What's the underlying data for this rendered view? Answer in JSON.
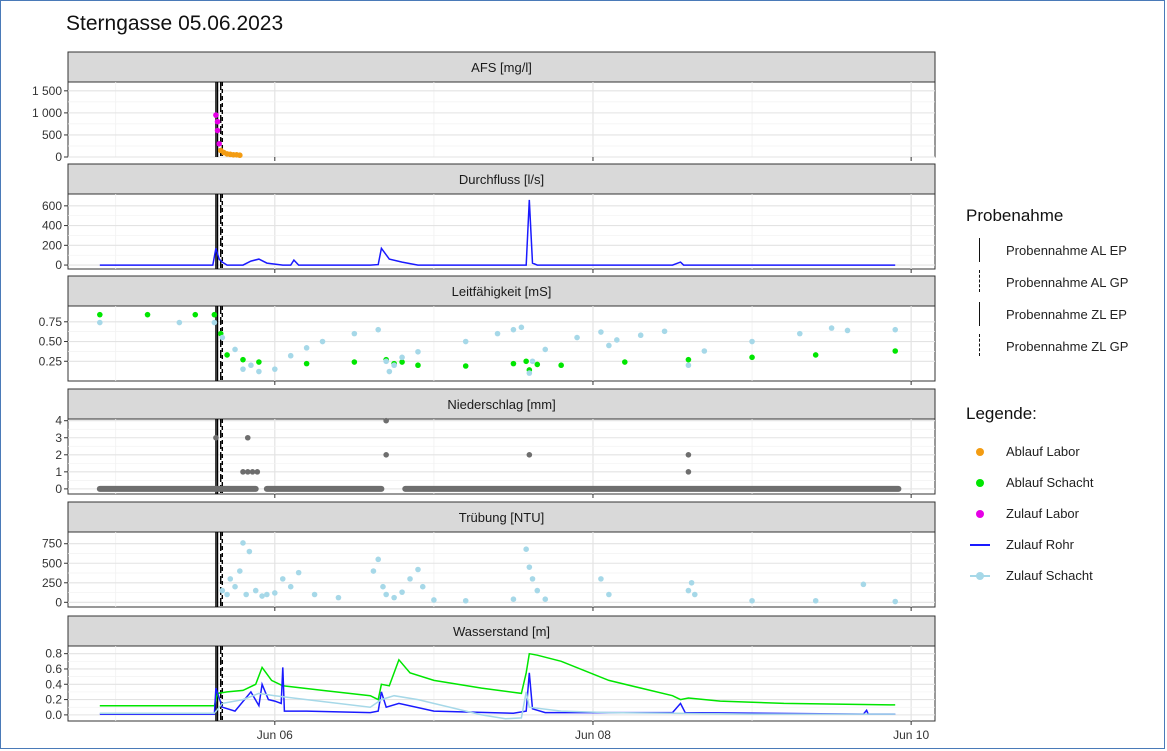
{
  "title": "Sterngasse 05.06.2023",
  "chart_data": {
    "type": "line",
    "x_ticks": [
      {
        "day": 0,
        "label": "Jun 06"
      },
      {
        "day": 2,
        "label": "Jun 08"
      },
      {
        "day": 4,
        "label": "Jun 10"
      }
    ],
    "x_range_days": [
      -1.3,
      4.15
    ],
    "sampling_events": {
      "AL EP": -0.36,
      "AL GP": -0.34,
      "ZL EP": -0.37,
      "ZL GP": -0.33
    },
    "panels": [
      {
        "title": "AFS [mg/l]",
        "ylim": [
          0,
          1700
        ],
        "yticks": [
          0,
          500,
          1000,
          1500
        ],
        "ytick_labels": [
          "0",
          "500",
          "1 000",
          "1 500"
        ],
        "series": [
          {
            "name": "Zulauf Labor",
            "style": "points",
            "x": [
              -0.37,
              -0.36,
              -0.36,
              -0.35
            ],
            "y": [
              950,
              800,
              600,
              300
            ]
          },
          {
            "name": "Ablauf Labor",
            "style": "points",
            "x": [
              -0.34,
              -0.32,
              -0.3,
              -0.28,
              -0.26,
              -0.24,
              -0.22
            ],
            "y": [
              150,
              100,
              70,
              60,
              50,
              50,
              40
            ]
          }
        ]
      },
      {
        "title": "Durchfluss [l/s]",
        "ylim": [
          -40,
          720
        ],
        "yticks": [
          0,
          200,
          400,
          600
        ],
        "ytick_labels": [
          "0",
          "200",
          "400",
          "600"
        ],
        "series": [
          {
            "name": "Zulauf Rohr",
            "style": "line",
            "x": [
              -1.1,
              -0.39,
              -0.37,
              -0.35,
              -0.33,
              -0.3,
              -0.2,
              -0.15,
              -0.1,
              -0.05,
              0.05,
              0.1,
              0.12,
              0.15,
              0.6,
              0.65,
              0.67,
              0.72,
              0.8,
              0.9,
              1.5,
              1.58,
              1.6,
              1.62,
              1.65,
              2.5,
              2.55,
              2.57,
              3.9
            ],
            "y": [
              0,
              0,
              170,
              60,
              30,
              0,
              0,
              40,
              60,
              20,
              0,
              0,
              50,
              0,
              0,
              5,
              170,
              60,
              30,
              0,
              0,
              0,
              660,
              20,
              0,
              0,
              30,
              0,
              0
            ]
          }
        ]
      },
      {
        "title": "Leitfähigkeit [mS]",
        "ylim": [
          0,
          0.95
        ],
        "yticks": [
          0.25,
          0.5,
          0.75
        ],
        "ytick_labels": [
          "0.25",
          "0.50",
          "0.75"
        ],
        "series": [
          {
            "name": "Ablauf Schacht",
            "style": "points",
            "x": [
              -1.1,
              -0.8,
              -0.5,
              -0.38,
              -0.34,
              -0.3,
              -0.2,
              -0.1,
              0.2,
              0.5,
              0.7,
              0.75,
              0.8,
              0.9,
              1.2,
              1.5,
              1.58,
              1.6,
              1.65,
              1.8,
              2.2,
              2.6,
              3.0,
              3.4,
              3.9
            ],
            "y": [
              0.84,
              0.84,
              0.84,
              0.84,
              0.6,
              0.33,
              0.27,
              0.24,
              0.22,
              0.24,
              0.27,
              0.22,
              0.24,
              0.2,
              0.19,
              0.22,
              0.25,
              0.14,
              0.21,
              0.2,
              0.24,
              0.27,
              0.3,
              0.33,
              0.38
            ]
          },
          {
            "name": "Zulauf Schacht",
            "style": "points",
            "x": [
              -1.1,
              -0.6,
              -0.38,
              -0.33,
              -0.25,
              -0.2,
              -0.15,
              -0.1,
              0.0,
              0.1,
              0.2,
              0.3,
              0.5,
              0.65,
              0.7,
              0.72,
              0.75,
              0.8,
              0.9,
              1.2,
              1.4,
              1.5,
              1.55,
              1.6,
              1.62,
              1.7,
              1.9,
              2.05,
              2.1,
              2.15,
              2.3,
              2.45,
              2.6,
              2.7,
              3.0,
              3.3,
              3.5,
              3.6,
              3.9
            ],
            "y": [
              0.74,
              0.74,
              0.74,
              0.55,
              0.4,
              0.15,
              0.2,
              0.12,
              0.15,
              0.32,
              0.42,
              0.5,
              0.6,
              0.65,
              0.25,
              0.12,
              0.2,
              0.3,
              0.37,
              0.5,
              0.6,
              0.65,
              0.68,
              0.1,
              0.25,
              0.4,
              0.55,
              0.62,
              0.45,
              0.52,
              0.58,
              0.63,
              0.2,
              0.38,
              0.5,
              0.6,
              0.67,
              0.64,
              0.65
            ]
          }
        ]
      },
      {
        "title": "Niederschlag [mm]",
        "ylim": [
          -0.3,
          4.1
        ],
        "yticks": [
          0,
          1,
          2,
          3,
          4
        ],
        "ytick_labels": [
          "0",
          "1",
          "2",
          "3",
          "4"
        ],
        "series": [
          {
            "name": "Niederschlag",
            "style": "points",
            "x": [
              -0.37,
              -0.2,
              -0.17,
              -0.14,
              -0.11,
              -0.17,
              0.7,
              0.7,
              1.6,
              2.6,
              2.6
            ],
            "y": [
              3,
              1,
              1,
              1,
              1,
              3,
              4,
              2,
              2,
              2,
              1
            ]
          }
        ]
      },
      {
        "title": "Trübung [NTU]",
        "ylim": [
          -60,
          900
        ],
        "yticks": [
          0,
          250,
          500,
          750
        ],
        "ytick_labels": [
          "0",
          "250",
          "500",
          "750"
        ],
        "series": [
          {
            "name": "Zulauf Schacht",
            "style": "points",
            "x": [
              -0.33,
              -0.3,
              -0.28,
              -0.25,
              -0.22,
              -0.2,
              -0.18,
              -0.16,
              -0.12,
              -0.08,
              -0.05,
              0.0,
              0.05,
              0.1,
              0.15,
              0.25,
              0.4,
              0.62,
              0.65,
              0.68,
              0.7,
              0.75,
              0.8,
              0.85,
              0.9,
              0.93,
              1.0,
              1.2,
              1.5,
              1.58,
              1.6,
              1.62,
              1.65,
              1.7,
              2.05,
              2.1,
              2.6,
              2.62,
              2.64,
              3.0,
              3.4,
              3.7,
              3.9
            ],
            "y": [
              150,
              100,
              300,
              200,
              400,
              760,
              100,
              650,
              150,
              80,
              100,
              120,
              300,
              200,
              380,
              100,
              60,
              400,
              550,
              200,
              100,
              60,
              130,
              300,
              420,
              200,
              30,
              20,
              40,
              680,
              450,
              300,
              150,
              40,
              300,
              100,
              150,
              250,
              100,
              20,
              20,
              230,
              10
            ]
          }
        ]
      },
      {
        "title": "Wasserstand [m]",
        "ylim": [
          -0.08,
          0.9
        ],
        "yticks": [
          0.0,
          0.2,
          0.4,
          0.6,
          0.8
        ],
        "ytick_labels": [
          "0.0",
          "0.2",
          "0.4",
          "0.6",
          "0.8"
        ],
        "series": [
          {
            "name": "Ablauf Schacht",
            "style": "line",
            "x": [
              -1.1,
              -0.38,
              -0.36,
              -0.3,
              -0.2,
              -0.12,
              -0.08,
              -0.02,
              0.05,
              0.3,
              0.6,
              0.65,
              0.67,
              0.72,
              0.78,
              0.85,
              1.0,
              1.3,
              1.55,
              1.58,
              1.6,
              1.65,
              1.8,
              2.1,
              2.5,
              2.55,
              2.6,
              2.8,
              3.2,
              3.9
            ],
            "y": [
              0.12,
              0.12,
              0.28,
              0.3,
              0.32,
              0.4,
              0.62,
              0.45,
              0.38,
              0.32,
              0.25,
              0.2,
              0.4,
              0.38,
              0.72,
              0.55,
              0.45,
              0.35,
              0.28,
              0.55,
              0.8,
              0.78,
              0.7,
              0.45,
              0.25,
              0.2,
              0.22,
              0.18,
              0.15,
              0.13
            ]
          },
          {
            "name": "Zulauf Rohr",
            "style": "line",
            "x": [
              -1.1,
              -0.38,
              -0.37,
              -0.33,
              -0.25,
              -0.15,
              -0.1,
              -0.08,
              -0.04,
              0.0,
              0.04,
              0.05,
              0.06,
              0.2,
              0.6,
              0.65,
              0.67,
              0.7,
              0.78,
              1.0,
              1.5,
              1.58,
              1.6,
              1.62,
              1.7,
              2.5,
              2.55,
              2.58,
              3.7,
              3.72,
              3.73,
              3.9
            ],
            "y": [
              0.01,
              0.01,
              0.35,
              0.1,
              0.05,
              0.3,
              0.12,
              0.4,
              0.2,
              0.18,
              0.15,
              0.62,
              0.05,
              0.05,
              0.03,
              0.05,
              0.3,
              0.1,
              0.15,
              0.05,
              0.02,
              0.05,
              0.55,
              0.08,
              0.03,
              0.03,
              0.15,
              0.03,
              0.01,
              0.06,
              0.01,
              0.01
            ]
          },
          {
            "name": "Zulauf Schacht",
            "style": "line",
            "x": [
              -1.1,
              -0.38,
              -0.33,
              -0.2,
              -0.1,
              0.0,
              0.2,
              0.6,
              0.67,
              0.75,
              0.9,
              1.3,
              1.45,
              1.55,
              1.58,
              1.6,
              1.8,
              2.1,
              2.5,
              3.0,
              3.9
            ],
            "y": [
              0.02,
              0.02,
              0.15,
              0.2,
              0.28,
              0.25,
              0.2,
              0.1,
              0.2,
              0.25,
              0.2,
              0.0,
              -0.05,
              -0.04,
              0.3,
              0.1,
              0.05,
              0.03,
              0.02,
              0.01,
              0.01
            ]
          }
        ]
      }
    ],
    "legend_probe": {
      "title": "Probenahme",
      "items": [
        {
          "label": "Probennahme AL EP",
          "dash": "solid"
        },
        {
          "label": "Probennahme AL GP",
          "dash": "longdash"
        },
        {
          "label": "Probennahme ZL EP",
          "dash": "solid"
        },
        {
          "label": "Probennahme ZL GP",
          "dash": "dashed"
        }
      ]
    },
    "legend_series": {
      "title": "Legende:",
      "items": [
        {
          "label": "Ablauf Labor",
          "color": "#f39c12"
        },
        {
          "label": "Ablauf Schacht",
          "color": "#00e600"
        },
        {
          "label": "Zulauf Labor",
          "color": "#e600e6"
        },
        {
          "label": "Zulauf Rohr",
          "color": "#1a1aff"
        },
        {
          "label": "Zulauf Schacht",
          "color": "#a6d8e8"
        }
      ]
    },
    "colors": {
      "Ablauf Labor": "#f39c12",
      "Ablauf Schacht": "#00e600",
      "Zulauf Labor": "#e600e6",
      "Zulauf Rohr": "#1a1aff",
      "Zulauf Schacht": "#a6d8e8",
      "Niederschlag": "#6e6e6e"
    }
  }
}
